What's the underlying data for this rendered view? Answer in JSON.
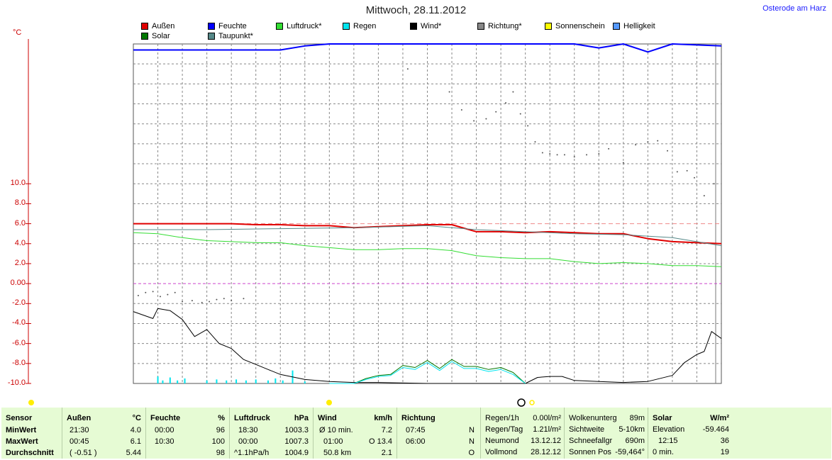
{
  "title": "Mittwoch, 28.11.2012",
  "location": "Osterode am Harz",
  "y_unit": "°C",
  "legend": [
    {
      "label": "Außen",
      "color": "#e00000"
    },
    {
      "label": "Feuchte",
      "color": "#0000ff"
    },
    {
      "label": "Luftdruck*",
      "color": "#33dd33"
    },
    {
      "label": "Regen",
      "color": "#00e5ee"
    },
    {
      "label": "Wind*",
      "color": "#000000"
    },
    {
      "label": "Richtung*",
      "color": "#888888"
    },
    {
      "label": "Sonnenschein",
      "color": "#ffff00"
    },
    {
      "label": "Helligkeit",
      "color": "#5599ff"
    },
    {
      "label": "Solar",
      "color": "#007700"
    },
    {
      "label": "Taupunkt*",
      "color": "#558888"
    }
  ],
  "chart_data": {
    "type": "line",
    "ylim": [
      -10,
      24
    ],
    "y_ticks": [
      "10.0",
      "8.0",
      "6.0",
      "4.0",
      "2.0",
      "0.00",
      "-2.0",
      "-4.0",
      "-6.0",
      "-8.0",
      "-10.0"
    ],
    "y_tick_values": [
      10,
      8,
      6,
      4,
      2,
      0,
      -2,
      -4,
      -6,
      -8,
      -10
    ],
    "x_range": [
      0,
      24
    ],
    "series": [
      {
        "name": "Feuchte",
        "color": "#0000ff",
        "x": [
          0,
          2,
          4,
          6,
          7,
          8,
          10,
          12,
          14,
          16,
          18,
          19,
          20,
          21,
          22,
          24
        ],
        "y": [
          23.4,
          23.4,
          23.4,
          23.4,
          23.8,
          24,
          24,
          24,
          24,
          24,
          24,
          23.6,
          24,
          23.2,
          24,
          23.8
        ]
      },
      {
        "name": "Außen",
        "color": "#e00000",
        "x": [
          0,
          1,
          2,
          3,
          4,
          5,
          6,
          7,
          8,
          9,
          10,
          11,
          12,
          13,
          14,
          15,
          16,
          17,
          18,
          19,
          20,
          21,
          22,
          23,
          24
        ],
        "y": [
          6.0,
          6.0,
          6.0,
          6.0,
          6.0,
          5.9,
          5.9,
          5.8,
          5.8,
          5.6,
          5.7,
          5.8,
          5.9,
          5.9,
          5.2,
          5.2,
          5.1,
          5.2,
          5.1,
          5.0,
          5.0,
          4.5,
          4.2,
          4.1,
          4.0
        ]
      },
      {
        "name": "Taupunkt*",
        "color": "#558888",
        "x": [
          0,
          3,
          6,
          9,
          12,
          14,
          16,
          18,
          20,
          22,
          24
        ],
        "y": [
          5.4,
          5.4,
          5.5,
          5.6,
          5.8,
          5.4,
          5.2,
          5.0,
          4.9,
          4.6,
          3.8
        ]
      },
      {
        "name": "Luftdruck*",
        "color": "#33dd33",
        "x": [
          0,
          1,
          2,
          3,
          4,
          5,
          6,
          7,
          8,
          9,
          10,
          11,
          12,
          13,
          14,
          15,
          16,
          17,
          18,
          19,
          20,
          21,
          22,
          23,
          24
        ],
        "y": [
          5.1,
          5.0,
          4.6,
          4.3,
          4.2,
          4.1,
          4.1,
          3.8,
          3.6,
          3.4,
          3.4,
          3.5,
          3.5,
          3.3,
          2.8,
          2.6,
          2.5,
          2.5,
          2.2,
          2.0,
          2.1,
          2.0,
          1.8,
          1.8,
          1.7
        ]
      },
      {
        "name": "Wind*",
        "color": "#000000",
        "x": [
          0,
          0.8,
          1,
          1.5,
          2,
          2.5,
          3,
          3.5,
          4,
          4.5,
          5,
          5.5,
          6,
          7,
          8,
          9,
          10,
          12,
          14,
          15,
          16,
          16.5,
          17,
          17.5,
          18,
          19,
          20,
          21,
          22,
          22.5,
          23,
          23.3,
          23.6,
          24
        ],
        "y": [
          -2.8,
          -3.5,
          -2.5,
          -2.7,
          -3.6,
          -5.3,
          -4.6,
          -6.0,
          -6.5,
          -7.6,
          -8.1,
          -8.6,
          -9.1,
          -9.6,
          -9.8,
          -9.9,
          -9.9,
          -10,
          -10,
          -10,
          -10,
          -9.4,
          -9.3,
          -9.3,
          -9.7,
          -9.8,
          -9.9,
          -9.8,
          -9.2,
          -7.9,
          -7.1,
          -6.8,
          -4.8,
          -5.5
        ]
      },
      {
        "name": "Solar",
        "color": "#007700",
        "x": [
          8,
          9,
          9.5,
          10,
          10.5,
          11,
          11.5,
          12,
          12.5,
          13,
          13.5,
          14,
          14.5,
          15,
          15.5,
          16
        ],
        "y": [
          -10,
          -10,
          -9.5,
          -9.2,
          -9.1,
          -8.2,
          -8.4,
          -7.7,
          -8.5,
          -7.6,
          -8.3,
          -8.3,
          -8.6,
          -8.4,
          -8.9,
          -10
        ]
      },
      {
        "name": "Regen",
        "color": "#00e5ee",
        "x": [
          8,
          9,
          9.5,
          10,
          10.5,
          11,
          11.5,
          12,
          12.5,
          13,
          13.5,
          14,
          14.5,
          15,
          15.5,
          16
        ],
        "y": [
          -10,
          -10,
          -9.6,
          -9.3,
          -9.2,
          -8.4,
          -8.6,
          -7.9,
          -8.7,
          -7.8,
          -8.5,
          -8.5,
          -8.8,
          -8.6,
          -9.1,
          -10
        ]
      }
    ],
    "dotted_series": {
      "name": "Richtung*",
      "color": "#555555",
      "x": [
        0.2,
        0.5,
        0.8,
        1.1,
        1.4,
        1.7,
        2.0,
        2.4,
        2.8,
        3.1,
        3.4,
        3.7,
        4.0,
        4.5,
        11.2,
        12.9,
        13.4,
        13.9,
        14.4,
        14.8,
        15.2,
        15.5,
        15.8,
        16.1,
        16.4,
        16.7,
        17.0,
        17.3,
        17.6,
        18.0,
        18.5,
        19.0,
        19.4,
        20.0,
        20.5,
        21.0,
        21.4,
        21.8,
        22.2,
        22.6,
        22.9,
        23.3,
        23.7
      ],
      "y": [
        -1.2,
        -0.9,
        -0.8,
        -1.3,
        -1.1,
        -0.9,
        -1.8,
        -1.7,
        -1.9,
        -1.8,
        -1.6,
        -1.5,
        -1.7,
        -1.5,
        21.5,
        19.2,
        17.4,
        16.3,
        16.5,
        17.2,
        18.1,
        19.2,
        17.0,
        15.8,
        14.2,
        13.1,
        13.0,
        12.9,
        12.9,
        12.7,
        12.9,
        13.0,
        13.5,
        12.1,
        13.9,
        14.2,
        14.3,
        13.3,
        11.2,
        11.3,
        10.6,
        8.8,
        10.0
      ]
    },
    "rain_bars": {
      "name": "Regen",
      "color": "#00e5ee",
      "x": [
        1.0,
        1.2,
        1.5,
        1.8,
        2.1,
        3.0,
        3.4,
        3.8,
        4.2,
        4.6,
        5.0,
        5.5,
        5.8,
        6.1,
        6.5,
        7.0
      ],
      "height": [
        0.7,
        0.3,
        0.6,
        0.3,
        0.5,
        0.3,
        0.4,
        0.3,
        0.4,
        0.3,
        0.4,
        0.3,
        0.5,
        0.3,
        1.3,
        0.2
      ]
    }
  },
  "table": {
    "sensor": {
      "header": "Sensor",
      "rows": [
        "MinWert",
        "MaxWert",
        "Durchschnitt"
      ]
    },
    "aussen": {
      "header": "Außen",
      "unit": "°C",
      "times": [
        "21:30",
        "00:45",
        "( -0.51 )"
      ],
      "values": [
        "4.0",
        "6.1",
        "5.44"
      ]
    },
    "feuchte": {
      "header": "Feuchte",
      "unit": "%",
      "times": [
        "00:00",
        "10:30",
        ""
      ],
      "values": [
        "96",
        "100",
        "98"
      ]
    },
    "luftdruck": {
      "header": "Luftdruck",
      "unit": "hPa",
      "times": [
        "18:30",
        "00:00",
        "^1.1hPa/h"
      ],
      "values": [
        "1003.3",
        "1007.3",
        "1004.9"
      ]
    },
    "wind": {
      "header": "Wind",
      "unit": "km/h",
      "times": [
        "Ø 10 min.",
        "01:00",
        "50.8 km"
      ],
      "extra": [
        "",
        "O",
        ""
      ],
      "values": [
        "7.2",
        "13.4",
        "2.1"
      ]
    },
    "richtung": {
      "header": "Richtung",
      "times": [
        "07:45",
        "06:00",
        ""
      ],
      "values": [
        "N",
        "N",
        "O"
      ]
    },
    "regen": {
      "labels": [
        "Regen/1h",
        "Regen/Tag",
        "Neumond",
        "Vollmond"
      ],
      "values": [
        "0.00l/m²",
        "1.21l/m²",
        "13.12.12",
        "28.12.12"
      ]
    },
    "wolken": {
      "labels": [
        "Wolkenunterg",
        "Sichtweite",
        "Schneefallgr",
        "Sonnen Pos"
      ],
      "values": [
        "89m",
        "5-10km",
        "690m",
        "-59,464°"
      ]
    },
    "solar": {
      "header": "Solar",
      "unit": "W/m²",
      "labels": [
        "Elevation",
        "12:15",
        "0 min."
      ],
      "values": [
        "-59.464",
        "36",
        "19"
      ]
    }
  }
}
